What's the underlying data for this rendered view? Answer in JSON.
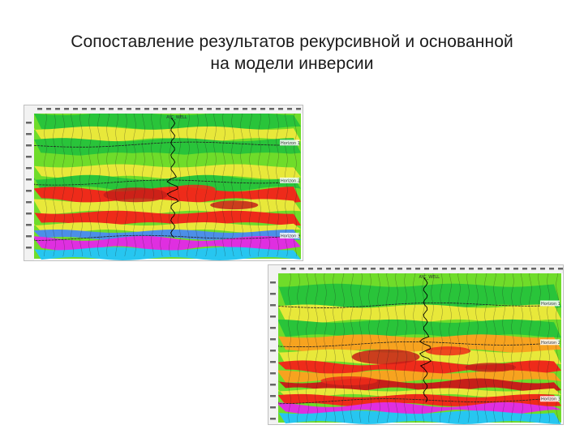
{
  "title": {
    "line1": "Сопоставление результатов рекурсивной и основанной",
    "line2": "на модели инверсии"
  },
  "sections": [
    {
      "name": "recursive-inversion-section",
      "well_label": "AYC_WELL",
      "horizon_labels": [
        "Horizon 1",
        "Horizon 2",
        "Horizon 3"
      ],
      "colors": [
        "#29c43a",
        "#6fdc2a",
        "#e8e83a",
        "#f7a31f",
        "#ee2b1a",
        "#c62019",
        "#7c3fd6",
        "#df2fe0",
        "#27c6f0",
        "#4c8fe8"
      ]
    },
    {
      "name": "model-based-inversion-section",
      "well_label": "AYC_WELL",
      "horizon_labels": [
        "Horizon 1",
        "Horizon 2",
        "Horizon 3"
      ],
      "colors": [
        "#29c43a",
        "#6fdc2a",
        "#e8e83a",
        "#f7a31f",
        "#ee2b1a",
        "#c62019",
        "#7c3fd6",
        "#df2fe0",
        "#27c6f0",
        "#4c8fe8"
      ]
    }
  ]
}
